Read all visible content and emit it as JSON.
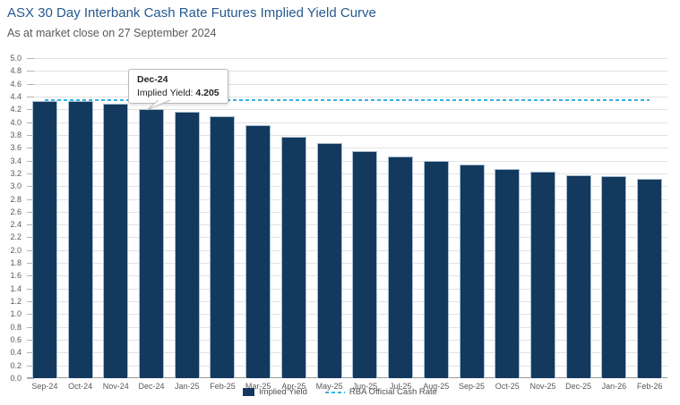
{
  "chart_data": {
    "type": "bar",
    "title": "ASX 30 Day Interbank Cash Rate Futures Implied Yield Curve",
    "subtitle": "As at market close on 27 September 2024",
    "categories": [
      "Sep-24",
      "Oct-24",
      "Nov-24",
      "Dec-24",
      "Jan-25",
      "Feb-25",
      "Mar-25",
      "Apr-25",
      "May-25",
      "Jun-25",
      "Jul-25",
      "Aug-25",
      "Sep-25",
      "Oct-25",
      "Nov-25",
      "Dec-25",
      "Jan-26",
      "Feb-26"
    ],
    "series": [
      {
        "name": "Implied Yield",
        "values": [
          4.325,
          4.335,
          4.29,
          4.205,
          4.16,
          4.09,
          3.95,
          3.77,
          3.68,
          3.55,
          3.46,
          3.39,
          3.34,
          3.27,
          3.22,
          3.17,
          3.15,
          3.11
        ]
      }
    ],
    "rba_line": {
      "name": "RBA Official Cash Rate",
      "value": 4.35
    },
    "ylim": [
      0,
      5
    ],
    "ytick_step": 0.2,
    "grid": true,
    "legend_position": "bottom",
    "colors": {
      "bar": "#14395e",
      "bar_border": "#a9bfd0",
      "rba_line": "#35b2e3",
      "title": "#26598f",
      "axis_text": "#595959",
      "gridline": "#e2e2e2"
    }
  },
  "tooltip": {
    "category": "Dec-24",
    "label": "Implied Yield: ",
    "value": "4.205"
  }
}
